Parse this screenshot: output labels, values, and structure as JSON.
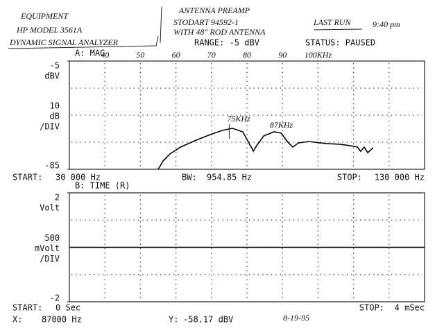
{
  "notes": {
    "equipment": "EQUIPMENT",
    "model": "HP MODEL 3561A",
    "analyzer": "DYNAMIC SIGNAL ANALYZER",
    "antenna_1": "ANTENNA PREAMP",
    "antenna_2": "STODART 94592-1",
    "antenna_3": "WITH 48\" ROD ANTENNA",
    "last_run": "LAST RUN",
    "time": "9:40 pm",
    "date": "8-19-95"
  },
  "header": {
    "range": "RANGE:  -5 dBV",
    "status": "STATUS:  PAUSED"
  },
  "footer": {
    "x_label": "X:",
    "x_value": "87000 Hz",
    "y_label": "Y:",
    "y_value": "-58.17 dBV"
  },
  "chart_data": [
    {
      "type": "line",
      "title": "A: MAG",
      "y_unit": "dBV",
      "y_scale": [
        "10",
        "dB",
        "/DIV"
      ],
      "start_label": "START:",
      "start": "30 000 Hz",
      "bw_label": "BW:",
      "bw": "954.85 Hz",
      "stop_label": "STOP:",
      "stop": "130 000 Hz",
      "xlim": [
        30000,
        130000
      ],
      "ylim": [
        -85,
        -5
      ],
      "yticks": [
        -5,
        -85
      ],
      "xticks": [
        {
          "value": 40000,
          "label": "40"
        },
        {
          "value": 50000,
          "label": "50"
        },
        {
          "value": 60000,
          "label": "60"
        },
        {
          "value": 70000,
          "label": "70"
        },
        {
          "value": 80000,
          "label": "80"
        },
        {
          "value": 90000,
          "label": "90"
        },
        {
          "value": 100000,
          "label": "100KHz"
        }
      ],
      "annotations": [
        {
          "text": "75KHz",
          "x": 75000
        },
        {
          "text": "87KHz",
          "x": 87000
        }
      ],
      "series": [
        {
          "color": "#000000",
          "x": [
            55000,
            56400,
            58300,
            61300,
            65200,
            69100,
            73000,
            75900,
            78800,
            80400,
            81800,
            82700,
            84700,
            87600,
            89600,
            91500,
            92900,
            94500,
            97400,
            102300,
            106200,
            109100,
            111100,
            112000,
            113000,
            114000,
            115500
          ],
          "values": [
            -85,
            -78.8,
            -73.7,
            -68.6,
            -64,
            -59.9,
            -56.3,
            -54.7,
            -57.3,
            -64.9,
            -71.6,
            -67.6,
            -60.4,
            -57.3,
            -58.3,
            -65,
            -68.6,
            -65.5,
            -64.5,
            -66,
            -66.5,
            -67.6,
            -68.6,
            -71.7,
            -68.6,
            -72.7,
            -69.1
          ]
        }
      ]
    },
    {
      "type": "line",
      "title": "B: TIME (R)",
      "y_unit": "Volt",
      "y_scale": [
        "500",
        "mVolt",
        "/DIV"
      ],
      "start_label": "START:",
      "start": "0 Sec",
      "stop_label": "STOP:",
      "stop": "4 mSec",
      "xlim": [
        0,
        4
      ],
      "ylim": [
        -2,
        2
      ],
      "yticks": [
        2,
        -2
      ],
      "series": [
        {
          "color": "#000000",
          "x": [
            0,
            4
          ],
          "values": [
            0,
            0
          ]
        }
      ]
    }
  ]
}
